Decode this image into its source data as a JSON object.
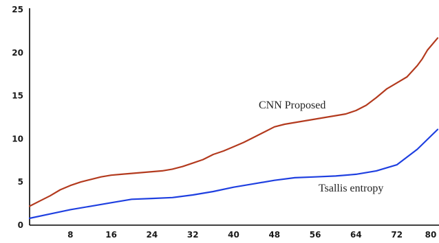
{
  "chart_data": {
    "type": "line",
    "title": "",
    "xlabel": "",
    "ylabel": "",
    "xlim": [
      0,
      80
    ],
    "ylim": [
      0,
      25
    ],
    "xticks": [
      8,
      16,
      24,
      32,
      40,
      48,
      56,
      64,
      72,
      80
    ],
    "yticks": [
      0,
      5,
      10,
      15,
      20,
      25
    ],
    "grid": false,
    "legend": "none",
    "series": [
      {
        "name": "CNN Proposed",
        "color": "#b33a1e",
        "x": [
          0,
          2,
          4,
          6,
          8,
          10,
          12,
          14,
          16,
          18,
          20,
          22,
          24,
          26,
          28,
          30,
          32,
          34,
          36,
          38,
          40,
          42,
          44,
          46,
          48,
          50,
          52,
          54,
          56,
          58,
          60,
          62,
          64,
          66,
          68,
          70,
          72,
          74,
          76,
          77,
          78,
          80
        ],
        "y": [
          2.2,
          2.8,
          3.4,
          4.1,
          4.6,
          5.0,
          5.3,
          5.6,
          5.8,
          5.9,
          6.0,
          6.1,
          6.2,
          6.3,
          6.5,
          6.8,
          7.2,
          7.6,
          8.2,
          8.6,
          9.1,
          9.6,
          10.2,
          10.8,
          11.4,
          11.7,
          11.9,
          12.1,
          12.3,
          12.5,
          12.7,
          12.9,
          13.3,
          13.9,
          14.8,
          15.8,
          16.5,
          17.2,
          18.5,
          19.3,
          20.3,
          21.7
        ]
      },
      {
        "name": "Tsallis entropy",
        "color": "#1e3fe0",
        "x": [
          0,
          4,
          8,
          12,
          16,
          20,
          24,
          28,
          32,
          36,
          40,
          44,
          48,
          52,
          56,
          60,
          64,
          68,
          72,
          76,
          80
        ],
        "y": [
          0.8,
          1.3,
          1.8,
          2.2,
          2.6,
          3.0,
          3.1,
          3.2,
          3.5,
          3.9,
          4.4,
          4.8,
          5.2,
          5.5,
          5.6,
          5.7,
          5.9,
          6.3,
          7.0,
          8.8,
          11.1
        ]
      }
    ]
  }
}
